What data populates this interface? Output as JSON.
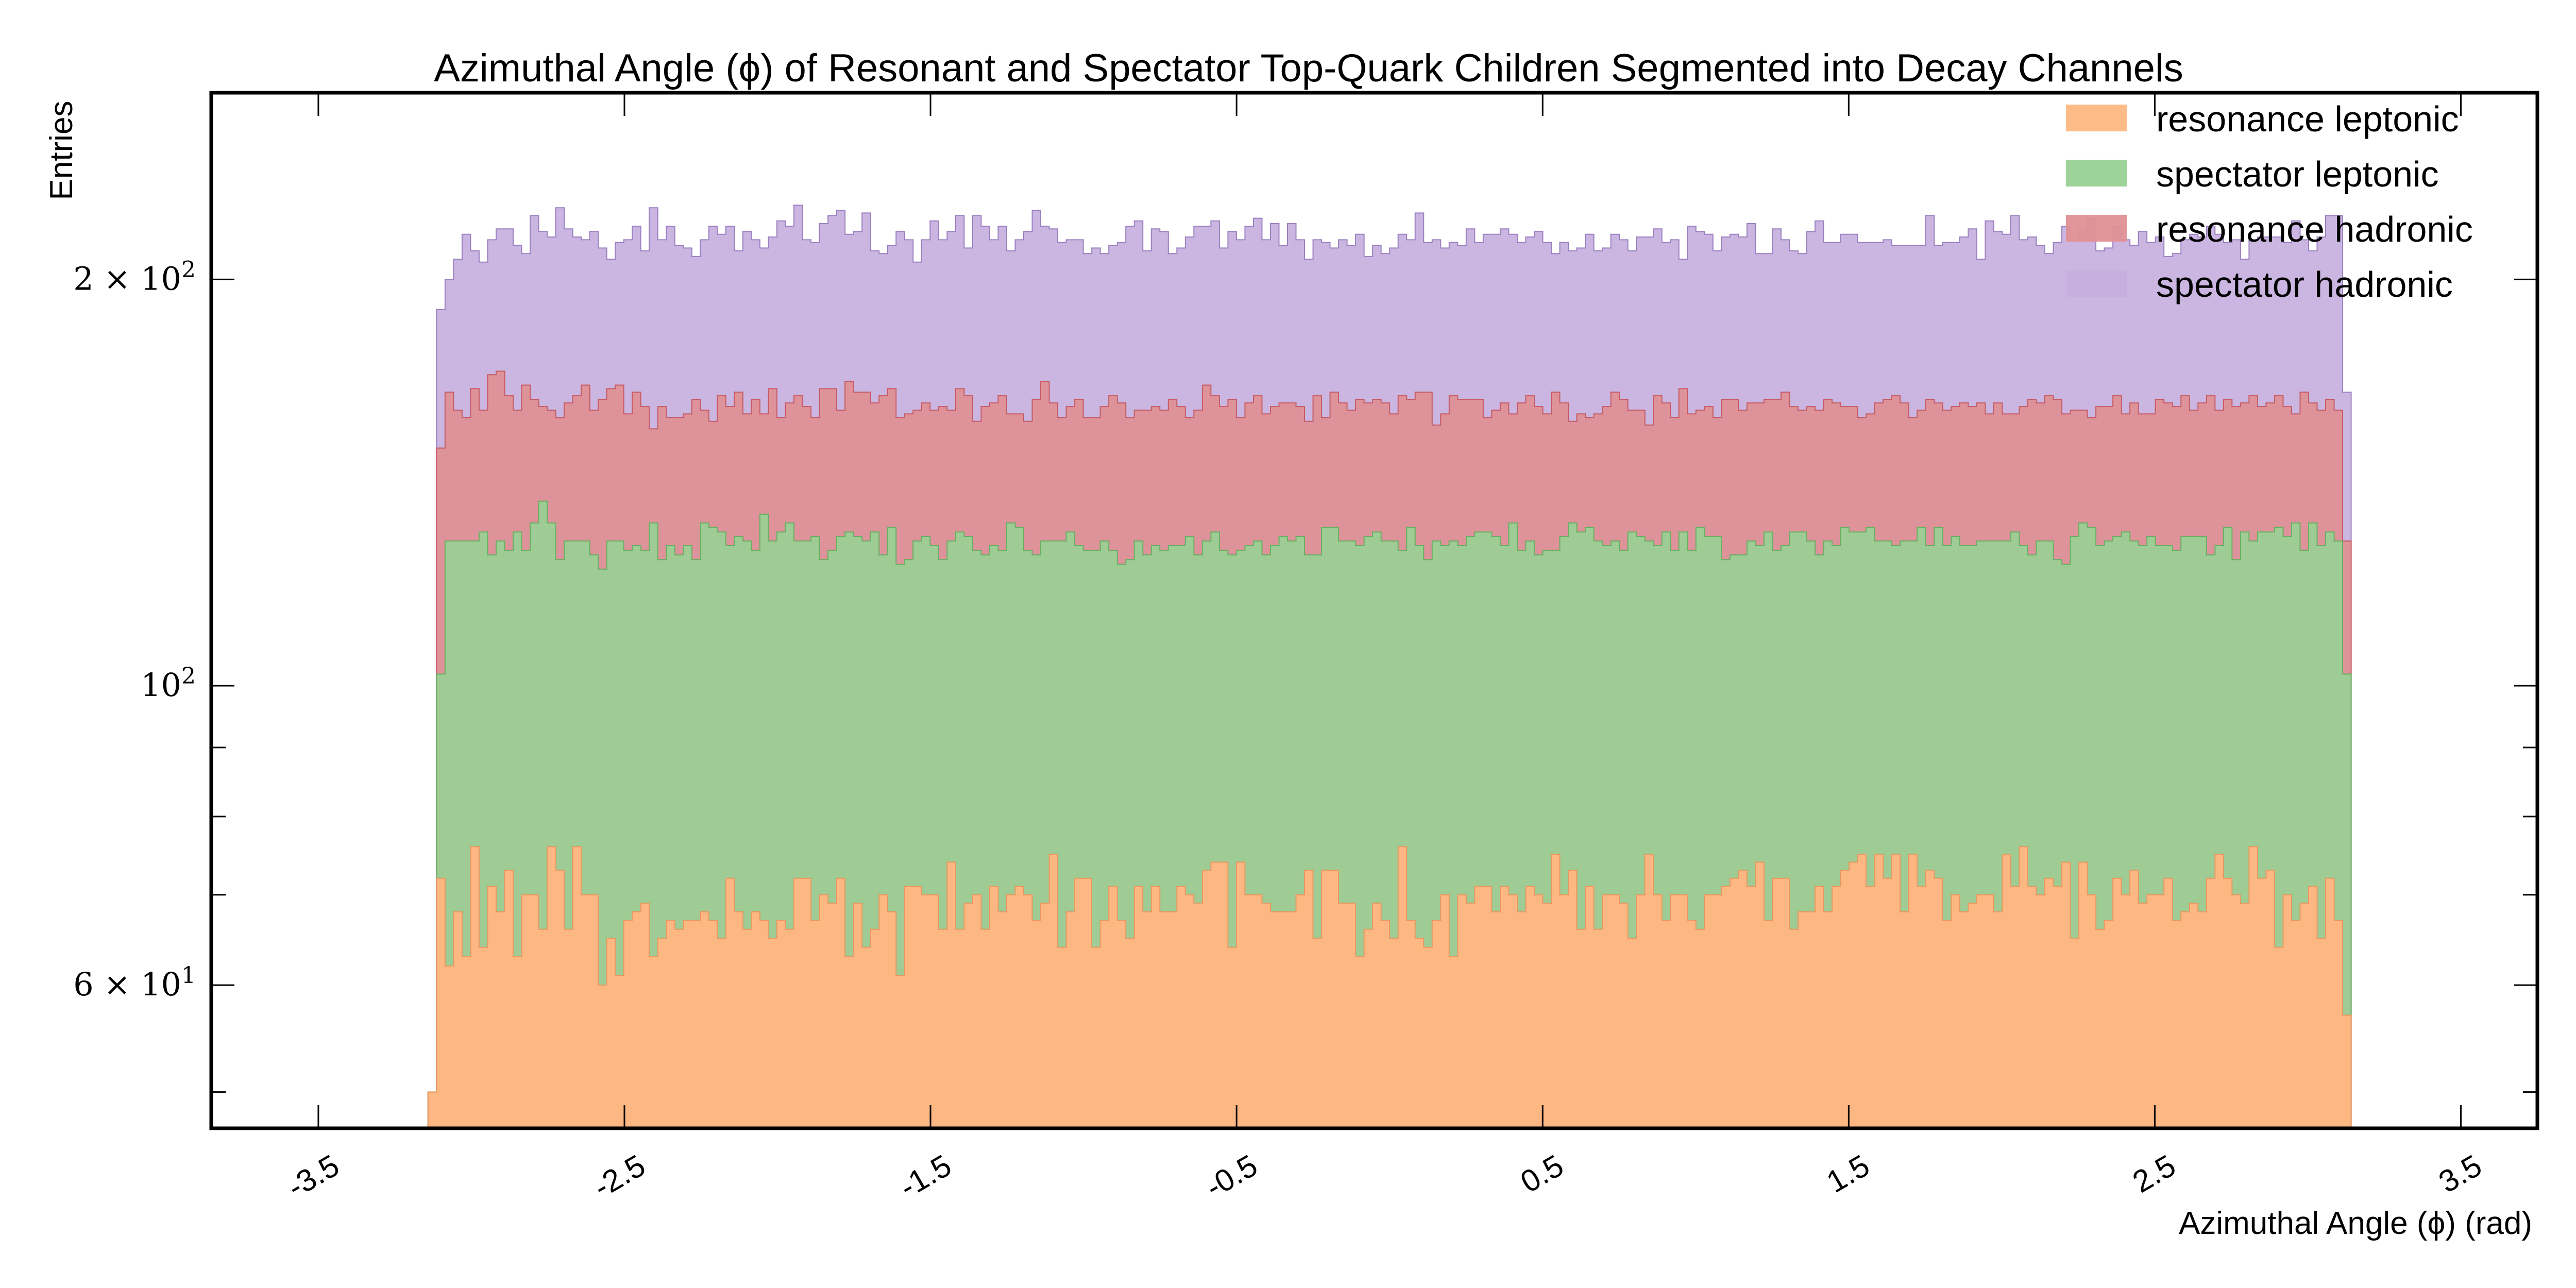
{
  "chart_data": {
    "type": "bar",
    "subtype": "stacked-step-histogram",
    "title": "Azimuthal Angle (ϕ) of Resonant and Spectator Top-Quark Children Segmented into Decay Channels",
    "xlabel": "Azimuthal Angle (ϕ) (rad)",
    "ylabel": "Entries",
    "yscale": "log",
    "xlim": [
      -3.85,
      3.75
    ],
    "ylim": [
      47,
      275
    ],
    "xticks": [
      "-3.5",
      "-2.5",
      "-1.5",
      "-0.5",
      "0.5",
      "1.5",
      "2.5",
      "3.5"
    ],
    "xtick_values": [
      -3.5,
      -2.5,
      -1.5,
      -0.5,
      0.5,
      1.5,
      2.5,
      3.5
    ],
    "yticks": [
      {
        "value": 60,
        "mant": "6",
        "exp": "1"
      },
      {
        "value": 100,
        "mant": "",
        "exp": "2"
      },
      {
        "value": 200,
        "mant": "2",
        "exp": "2"
      }
    ],
    "bin_range": [
      -3.1416,
      3.1416
    ],
    "legend_position": "top-right",
    "series": [
      {
        "name": "resonance leptonic",
        "color": "#fdb782",
        "stroke": "#e89860",
        "values": [
          50,
          72,
          62,
          68,
          63,
          76,
          64,
          71,
          68,
          73,
          63,
          70,
          70,
          66,
          76,
          73,
          66,
          76,
          70,
          70,
          60,
          65,
          61,
          67,
          68,
          69,
          63,
          65,
          67,
          66,
          67,
          67,
          68,
          67,
          65,
          72,
          68,
          66,
          68,
          67,
          65,
          67,
          66,
          72,
          72,
          67,
          70,
          69,
          72,
          63,
          69,
          64,
          66,
          70,
          68,
          61,
          71,
          71,
          70,
          70,
          66,
          74,
          66,
          69,
          70,
          66,
          71,
          68,
          70,
          71,
          70,
          67,
          69,
          75,
          64,
          68,
          72,
          72,
          64,
          67,
          71,
          67,
          65,
          71,
          68,
          71,
          68,
          68,
          71,
          70,
          69,
          73,
          74,
          74,
          64,
          74,
          70,
          70,
          69,
          68,
          68,
          68,
          70,
          73,
          65,
          73,
          73,
          69,
          69,
          63,
          66,
          69,
          67,
          65,
          76,
          67,
          65,
          64,
          67,
          70,
          63,
          70,
          69,
          71,
          71,
          68,
          71,
          70,
          68,
          71,
          70,
          69,
          75,
          70,
          73,
          66,
          71,
          66,
          70,
          70,
          69,
          65,
          70,
          75,
          70,
          67,
          70,
          70,
          67,
          66,
          70,
          70,
          71,
          72,
          73,
          71,
          74,
          67,
          72,
          72,
          66,
          68,
          68,
          71,
          68,
          71,
          73,
          74,
          75,
          71,
          75,
          72,
          75,
          68,
          75,
          71,
          73,
          72,
          67,
          70,
          68,
          69,
          70,
          70,
          68,
          75,
          71,
          76,
          71,
          70,
          72,
          71,
          74,
          65,
          74,
          70,
          66,
          67,
          72,
          70,
          73,
          69,
          70,
          70,
          72,
          67,
          68,
          69,
          68,
          72,
          75,
          72,
          70,
          69,
          76,
          72,
          73,
          64,
          70,
          67,
          69,
          71,
          65,
          72,
          67,
          57
        ]
      },
      {
        "name": "spectator leptonic",
        "color": "#98d094",
        "stroke": "#66b060",
        "values": [
          50,
          102,
          128,
          128,
          128,
          128,
          130,
          125,
          128,
          126,
          130,
          126,
          132,
          137,
          132,
          124,
          128,
          128,
          128,
          125,
          122,
          128,
          128,
          126,
          127,
          126,
          132,
          124,
          127,
          125,
          127,
          124,
          132,
          131,
          130,
          127,
          129,
          128,
          126,
          134,
          128,
          130,
          132,
          128,
          128,
          129,
          124,
          126,
          129,
          130,
          129,
          128,
          130,
          125,
          131,
          123,
          124,
          128,
          129,
          127,
          124,
          128,
          130,
          129,
          126,
          125,
          127,
          126,
          132,
          131,
          126,
          125,
          128,
          128,
          128,
          130,
          127,
          126,
          126,
          128,
          126,
          123,
          124,
          128,
          125,
          127,
          126,
          127,
          127,
          129,
          125,
          128,
          130,
          126,
          125,
          126,
          127,
          128,
          125,
          127,
          129,
          128,
          129,
          125,
          125,
          131,
          131,
          128,
          128,
          127,
          129,
          130,
          128,
          128,
          126,
          131,
          127,
          124,
          128,
          127,
          128,
          127,
          129,
          130,
          130,
          129,
          127,
          132,
          126,
          128,
          125,
          126,
          126,
          129,
          132,
          130,
          131,
          128,
          127,
          128,
          126,
          130,
          129,
          128,
          127,
          130,
          126,
          130,
          126,
          131,
          129,
          129,
          124,
          125,
          125,
          128,
          127,
          130,
          126,
          127,
          130,
          130,
          128,
          125,
          128,
          127,
          131,
          130,
          130,
          131,
          128,
          128,
          127,
          128,
          128,
          131,
          127,
          131,
          127,
          129,
          127,
          127,
          128,
          128,
          128,
          128,
          130,
          127,
          125,
          128,
          128,
          124,
          123,
          129,
          132,
          131,
          127,
          128,
          129,
          130,
          128,
          127,
          129,
          127,
          127,
          126,
          129,
          129,
          129,
          125,
          127,
          131,
          124,
          130,
          128,
          130,
          130,
          131,
          129,
          132,
          126,
          132,
          127,
          130,
          128,
          102
        ]
      },
      {
        "name": "resonance hadronic",
        "color": "#e09095",
        "stroke": "#c85a62",
        "values": [
          50,
          150,
          165,
          160,
          158,
          166,
          160,
          170,
          171,
          164,
          160,
          167,
          163,
          161,
          160,
          158,
          162,
          164,
          167,
          160,
          163,
          166,
          167,
          159,
          165,
          161,
          155,
          161,
          158,
          158,
          159,
          163,
          160,
          157,
          164,
          161,
          165,
          159,
          163,
          159,
          166,
          158,
          162,
          164,
          161,
          158,
          166,
          166,
          160,
          168,
          165,
          165,
          162,
          164,
          166,
          158,
          159,
          160,
          162,
          160,
          161,
          160,
          166,
          164,
          157,
          161,
          162,
          164,
          159,
          159,
          157,
          163,
          168,
          162,
          158,
          161,
          163,
          158,
          158,
          161,
          164,
          162,
          158,
          160,
          160,
          161,
          160,
          163,
          161,
          158,
          160,
          167,
          164,
          161,
          163,
          158,
          162,
          164,
          159,
          161,
          162,
          162,
          161,
          157,
          164,
          158,
          165,
          162,
          160,
          163,
          162,
          163,
          162,
          159,
          164,
          163,
          165,
          165,
          156,
          159,
          164,
          163,
          163,
          163,
          158,
          160,
          162,
          159,
          162,
          164,
          161,
          159,
          165,
          162,
          157,
          159,
          158,
          159,
          161,
          165,
          163,
          160,
          160,
          156,
          164,
          162,
          158,
          166,
          159,
          160,
          161,
          158,
          163,
          163,
          160,
          162,
          162,
          163,
          163,
          165,
          161,
          160,
          161,
          160,
          163,
          162,
          161,
          161,
          158,
          159,
          162,
          163,
          164,
          162,
          158,
          160,
          163,
          162,
          160,
          161,
          162,
          161,
          162,
          159,
          162,
          159,
          159,
          161,
          163,
          162,
          164,
          163,
          159,
          160,
          160,
          158,
          161,
          161,
          164,
          159,
          162,
          159,
          159,
          163,
          162,
          161,
          164,
          160,
          162,
          164,
          160,
          163,
          161,
          162,
          164,
          161,
          162,
          164,
          161,
          159,
          165,
          162,
          160,
          163,
          160,
          128
        ]
      },
      {
        "name": "spectator hadronic",
        "color": "#c6b0de",
        "stroke": "#9a80c0",
        "values": [
          50,
          190,
          200,
          207,
          216,
          210,
          206,
          214,
          218,
          218,
          212,
          209,
          223,
          217,
          215,
          226,
          218,
          215,
          214,
          217,
          211,
          207,
          213,
          214,
          219,
          210,
          226,
          214,
          219,
          212,
          211,
          208,
          214,
          219,
          216,
          219,
          210,
          217,
          214,
          211,
          215,
          221,
          219,
          227,
          214,
          213,
          220,
          223,
          225,
          216,
          217,
          224,
          210,
          209,
          212,
          217,
          214,
          206,
          214,
          221,
          214,
          217,
          223,
          211,
          223,
          219,
          214,
          219,
          210,
          214,
          217,
          225,
          219,
          218,
          213,
          214,
          214,
          209,
          211,
          209,
          212,
          213,
          219,
          221,
          210,
          218,
          217,
          209,
          211,
          215,
          219,
          219,
          221,
          211,
          217,
          214,
          219,
          222,
          214,
          220,
          212,
          220,
          214,
          207,
          214,
          213,
          211,
          214,
          212,
          216,
          208,
          212,
          209,
          211,
          216,
          214,
          224,
          213,
          214,
          211,
          213,
          212,
          218,
          213,
          216,
          216,
          218,
          216,
          213,
          215,
          217,
          213,
          209,
          213,
          210,
          211,
          216,
          210,
          211,
          216,
          214,
          210,
          215,
          215,
          218,
          213,
          214,
          207,
          219,
          217,
          216,
          210,
          215,
          216,
          215,
          220,
          209,
          209,
          218,
          214,
          210,
          209,
          217,
          221,
          213,
          213,
          216,
          216,
          213,
          213,
          213,
          214,
          212,
          212,
          212,
          212,
          223,
          212,
          213,
          213,
          215,
          218,
          207,
          221,
          217,
          216,
          223,
          214,
          215,
          212,
          209,
          213,
          219,
          214,
          218,
          222,
          210,
          211,
          219,
          214,
          212,
          217,
          213,
          215,
          208,
          209,
          214,
          216,
          215,
          219,
          216,
          213,
          214,
          207,
          214,
          215,
          215,
          215,
          213,
          221,
          214,
          210,
          215,
          223,
          223,
          165
        ]
      }
    ]
  }
}
